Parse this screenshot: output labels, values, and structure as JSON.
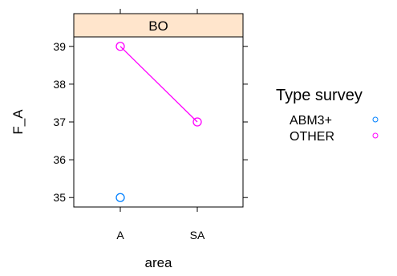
{
  "chart_data": {
    "type": "scatter",
    "panel_strip": "BO",
    "xlabel": "area",
    "ylabel": "F_A",
    "categories": [
      "A",
      "SA"
    ],
    "ylim": [
      34.75,
      39.25
    ],
    "yticks": [
      35,
      36,
      37,
      38,
      39
    ],
    "grid": false,
    "legend": {
      "title": "Type survey",
      "placement": "right"
    },
    "series": [
      {
        "name": "ABM3+",
        "color": "#0080ff",
        "points": [
          {
            "x": "A",
            "y": 35
          }
        ],
        "line": false
      },
      {
        "name": "OTHER",
        "color": "#ff00ff",
        "points": [
          {
            "x": "A",
            "y": 39
          },
          {
            "x": "SA",
            "y": 37
          }
        ],
        "line": true
      }
    ],
    "strip_color": "#ffe5cc"
  }
}
